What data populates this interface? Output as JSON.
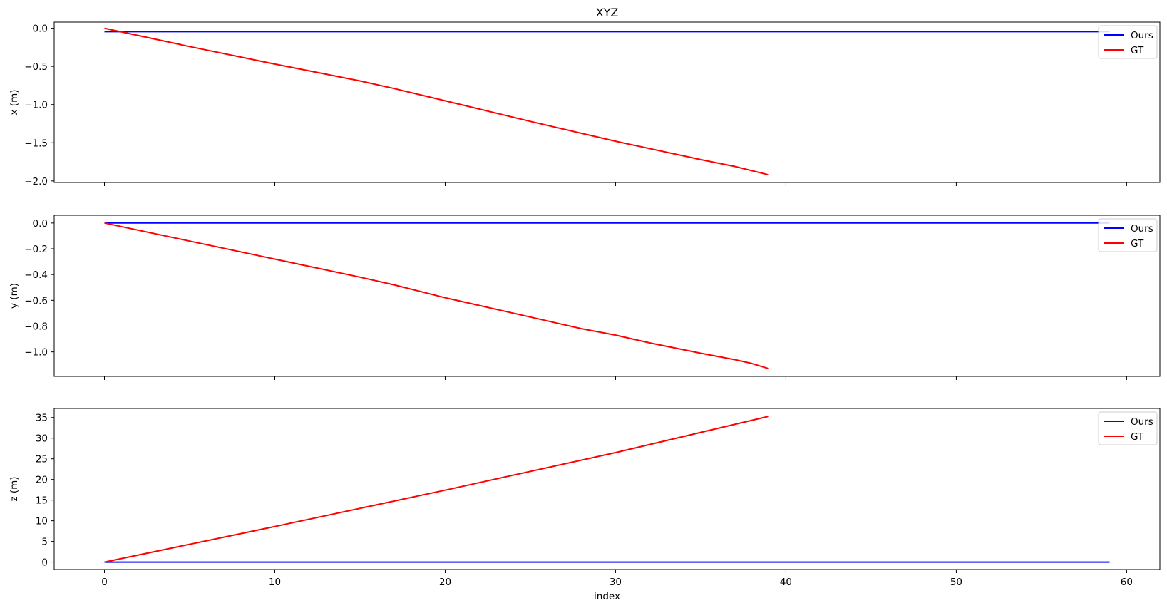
{
  "chart_data": [
    {
      "type": "line",
      "title": "XYZ",
      "ylabel": "x (m)",
      "xlabel": "",
      "xlim": [
        -2.95,
        61.95
      ],
      "ylim": [
        -2.02,
        0.08
      ],
      "x_ticks": [
        0,
        10,
        20,
        30,
        40,
        50,
        60
      ],
      "x_tick_labels_visible": false,
      "y_ticks": [
        0.0,
        -0.5,
        -1.0,
        -1.5,
        -2.0
      ],
      "y_tick_labels": [
        "0.0",
        "−0.5",
        "−1.0",
        "−1.5",
        "−2.0"
      ],
      "legend": "top-right",
      "series": [
        {
          "name": "Ours",
          "color": "#0000ff",
          "x": [
            0,
            59
          ],
          "y": [
            -0.045,
            -0.045
          ]
        },
        {
          "name": "GT",
          "color": "#ff0000",
          "x": [
            0,
            5,
            10,
            15,
            17,
            20,
            25,
            30,
            35,
            37,
            39
          ],
          "y": [
            0.0,
            -0.24,
            -0.47,
            -0.69,
            -0.79,
            -0.95,
            -1.22,
            -1.48,
            -1.72,
            -1.81,
            -1.92
          ]
        }
      ]
    },
    {
      "type": "line",
      "title": "",
      "ylabel": "y (m)",
      "xlabel": "",
      "xlim": [
        -2.95,
        61.95
      ],
      "ylim": [
        -1.19,
        0.06
      ],
      "x_ticks": [
        0,
        10,
        20,
        30,
        40,
        50,
        60
      ],
      "x_tick_labels_visible": false,
      "y_ticks": [
        0.0,
        -0.2,
        -0.4,
        -0.6,
        -0.8,
        -1.0
      ],
      "y_tick_labels": [
        "0.0",
        "−0.2",
        "−0.4",
        "−0.6",
        "−0.8",
        "−1.0"
      ],
      "legend": "top-right",
      "series": [
        {
          "name": "Ours",
          "color": "#0000ff",
          "x": [
            0,
            59
          ],
          "y": [
            0.0,
            0.0
          ]
        },
        {
          "name": "GT",
          "color": "#ff0000",
          "x": [
            0,
            5,
            10,
            15,
            17,
            20,
            25,
            27,
            28,
            30,
            32,
            35,
            37,
            38,
            39
          ],
          "y": [
            0.0,
            -0.14,
            -0.28,
            -0.42,
            -0.48,
            -0.58,
            -0.73,
            -0.79,
            -0.82,
            -0.87,
            -0.93,
            -1.01,
            -1.06,
            -1.09,
            -1.13
          ]
        }
      ]
    },
    {
      "type": "line",
      "title": "",
      "ylabel": "z (m)",
      "xlabel": "index",
      "xlim": [
        -2.95,
        61.95
      ],
      "ylim": [
        -1.8,
        37.2
      ],
      "x_ticks": [
        0,
        10,
        20,
        30,
        40,
        50,
        60
      ],
      "x_tick_labels_visible": true,
      "x_tick_labels": [
        "0",
        "10",
        "20",
        "30",
        "40",
        "50",
        "60"
      ],
      "y_ticks": [
        0,
        5,
        10,
        15,
        20,
        25,
        30,
        35
      ],
      "y_tick_labels": [
        "0",
        "5",
        "10",
        "15",
        "20",
        "25",
        "30",
        "35"
      ],
      "legend": "top-right",
      "series": [
        {
          "name": "Ours",
          "color": "#0000ff",
          "x": [
            0,
            59
          ],
          "y": [
            0.0,
            0.0
          ]
        },
        {
          "name": "GT",
          "color": "#ff0000",
          "x": [
            0,
            10,
            20,
            30,
            39
          ],
          "y": [
            0.0,
            8.6,
            17.4,
            26.5,
            35.3
          ]
        }
      ]
    }
  ]
}
